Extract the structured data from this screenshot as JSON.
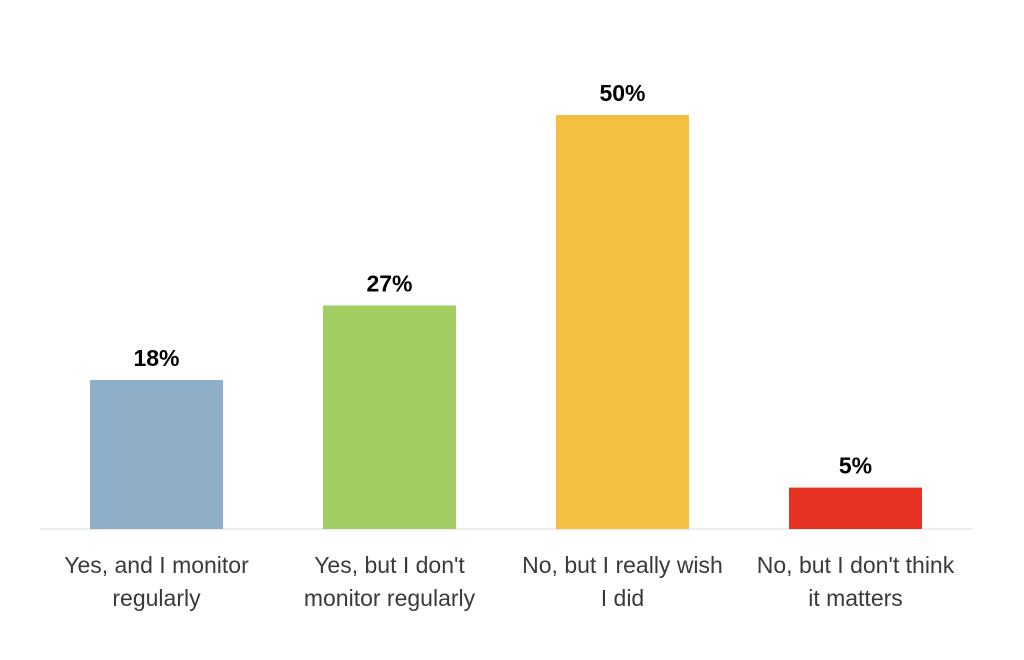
{
  "chart_data": {
    "type": "bar",
    "categories": [
      [
        "Yes, and I monitor",
        "regularly"
      ],
      [
        "Yes, but I don't",
        "monitor regularly"
      ],
      [
        "No, but I really wish",
        "I did"
      ],
      [
        "No, but I don't think",
        "it matters"
      ]
    ],
    "values": [
      18,
      27,
      50,
      5
    ],
    "value_labels": [
      "18%",
      "27%",
      "50%",
      "5%"
    ],
    "colors": [
      "#8fafc8",
      "#a2cd62",
      "#f5c042",
      "#e63323"
    ],
    "ylim": [
      0,
      55
    ],
    "grid": false,
    "legend": "none"
  }
}
